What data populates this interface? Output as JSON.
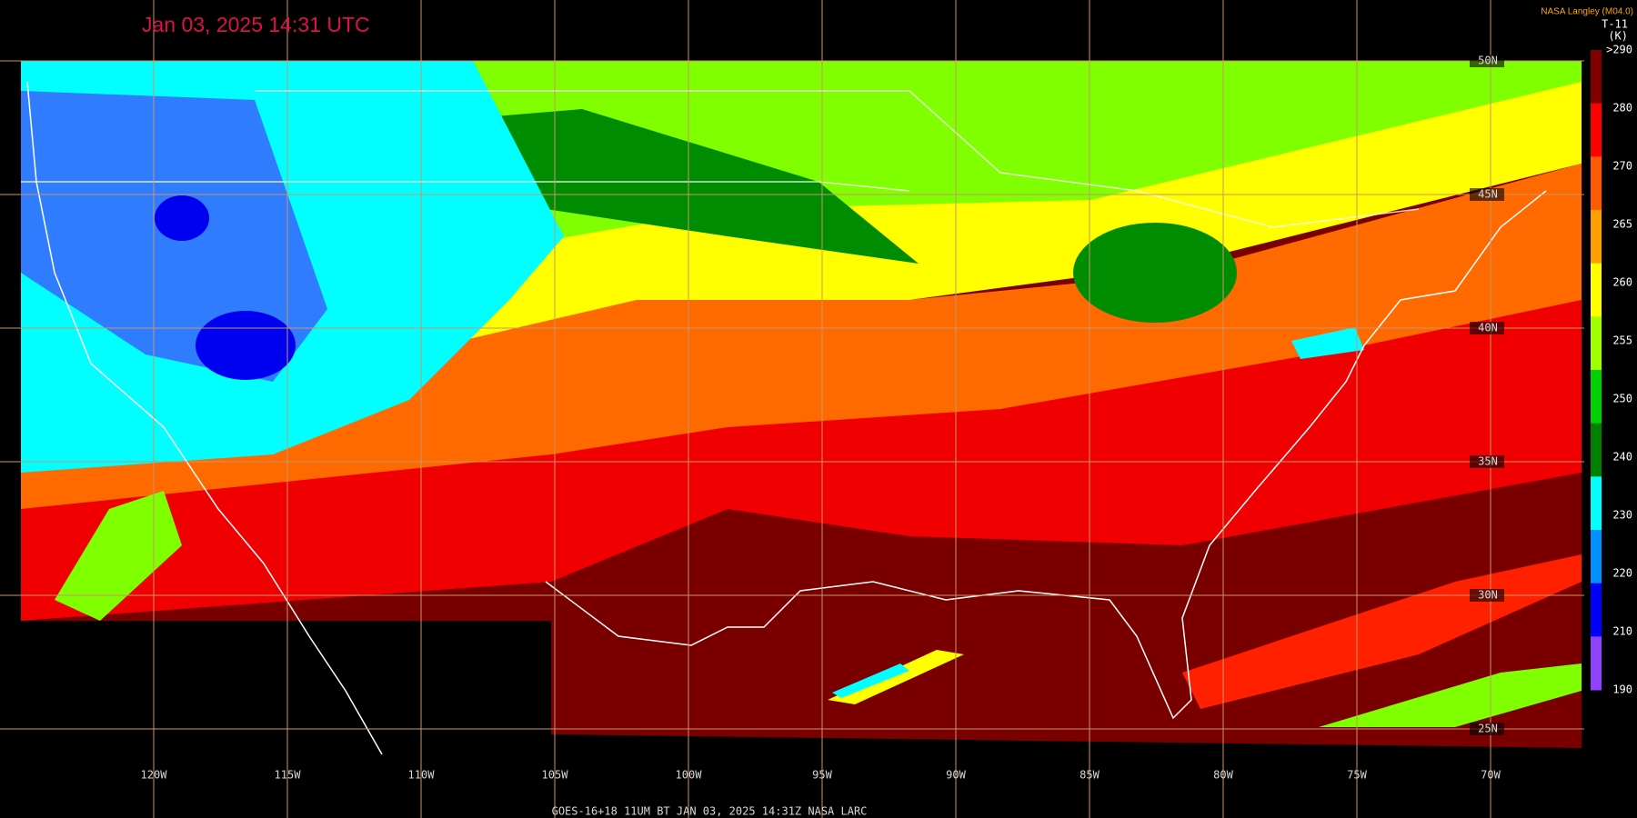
{
  "header": {
    "title": "Jan 03, 2025 14:31 UTC",
    "credit": "NASA Langley (M04.0)",
    "product": "T-11",
    "unit": "(K)"
  },
  "colorbar": {
    "labels": [
      ">290",
      "280",
      "270",
      "265",
      "260",
      "255",
      "250",
      "240",
      "230",
      "220",
      "210",
      "190"
    ],
    "colors": [
      "#800000",
      "#ff0000",
      "#ff5a00",
      "#ffa000",
      "#ffff00",
      "#a0ff00",
      "#00d000",
      "#008000",
      "#00ffff",
      "#0090ff",
      "#0000ff",
      "#9040ff"
    ]
  },
  "longitudes": [
    "120W",
    "115W",
    "110W",
    "105W",
    "100W",
    "95W",
    "90W",
    "85W",
    "80W",
    "75W",
    "70W"
  ],
  "latitudes": [
    "50N",
    "45N",
    "40N",
    "35N",
    "30N",
    "25N"
  ],
  "footer": "GOES-16+18  11UM BT  JAN 03, 2025 14:31Z  NASA LARC"
}
